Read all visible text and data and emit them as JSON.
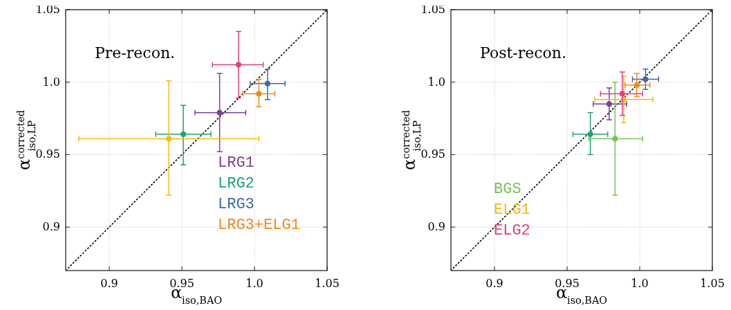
{
  "chart_data": [
    {
      "type": "scatter",
      "xlabel": "α$_{iso,BAO}$",
      "ylabel": "α$^{corrected}$$_{iso,LP}$",
      "annotations": [
        "Pre-recon."
      ],
      "xlim": [
        0.87,
        1.05
      ],
      "ylim": [
        0.87,
        1.05
      ],
      "xticks": [
        0.9,
        0.95,
        {
          "value": 1,
          "label": "1.0"
        },
        1.05
      ],
      "yticks": [
        0.9,
        0.95,
        {
          "value": 1,
          "label": "1.0"
        },
        1.05
      ],
      "grid": true,
      "legend": "bottom right",
      "marker": "circle",
      "series": [
        {
          "type": "line",
          "color": "#000000",
          "line_style": "dotted",
          "marker": "none",
          "x": [
            0.87,
            1.05
          ],
          "values": [
            0.87,
            1.05
          ]
        },
        {
          "name": "LRG1",
          "color": "#7b3f98",
          "x": [
            0.976
          ],
          "values": [
            0.979
          ],
          "xerrors": [
            [
              0.959,
              0.994
            ]
          ],
          "errors": [
            [
              0.952,
              1.006
            ]
          ]
        },
        {
          "name": "LRG2",
          "color": "#1aa37a",
          "x": [
            0.951
          ],
          "values": [
            0.964
          ],
          "xerrors": [
            [
              0.932,
              0.97
            ]
          ],
          "errors": [
            [
              0.943,
              0.984
            ]
          ]
        },
        {
          "name": "LRG3",
          "color": "#3b68b0",
          "x": [
            1.009
          ],
          "values": [
            0.999
          ],
          "xerrors": [
            [
              0.997,
              1.021
            ]
          ],
          "errors": [
            [
              0.988,
              1.009
            ]
          ]
        },
        {
          "name": "LRG3+ELG1",
          "color": "#f0891a",
          "x": [
            1.003
          ],
          "values": [
            0.992
          ],
          "xerrors": [
            [
              0.992,
              1.014
            ]
          ],
          "errors": [
            [
              0.983,
              1.002
            ]
          ]
        },
        {
          "color": "#f5bc0a",
          "x": [
            0.941
          ],
          "values": [
            0.961
          ],
          "xerrors": [
            [
              0.879,
              1.003
            ]
          ],
          "errors": [
            [
              0.922,
              1.001
            ]
          ]
        },
        {
          "color": "#e83e73",
          "x": [
            0.989
          ],
          "values": [
            1.012
          ],
          "xerrors": [
            [
              0.971,
              1.006
            ]
          ],
          "errors": [
            [
              0.989,
              1.035
            ]
          ]
        }
      ]
    },
    {
      "type": "scatter",
      "xlabel": "α$_{iso,BAO}$",
      "ylabel": "α$^{corrected}$$_{iso,LP}$",
      "annotations": [
        "Post-recon."
      ],
      "xlim": [
        0.87,
        1.05
      ],
      "ylim": [
        0.87,
        1.05
      ],
      "xticks": [
        0.9,
        0.95,
        {
          "value": 1,
          "label": "1.0"
        },
        1.05
      ],
      "yticks": [
        0.9,
        0.95,
        {
          "value": 1,
          "label": "1.0"
        },
        1.05
      ],
      "grid": true,
      "legend": "bottom left",
      "marker": "circle",
      "series": [
        {
          "type": "line",
          "color": "#000000",
          "line_style": "dotted",
          "marker": "none",
          "x": [
            0.87,
            1.05
          ],
          "values": [
            0.87,
            1.05
          ]
        },
        {
          "color": "#7b3f98",
          "x": [
            0.979
          ],
          "values": [
            0.985
          ],
          "xerrors": [
            [
              0.968,
              0.991
            ]
          ],
          "errors": [
            [
              0.974,
              0.996
            ]
          ]
        },
        {
          "color": "#1aa37a",
          "x": [
            0.966
          ],
          "values": [
            0.964
          ],
          "xerrors": [
            [
              0.954,
              0.978
            ]
          ],
          "errors": [
            [
              0.95,
              0.979
            ]
          ]
        },
        {
          "color": "#3b68b0",
          "x": [
            1.004
          ],
          "values": [
            1.002
          ],
          "xerrors": [
            [
              0.995,
              1.013
            ]
          ],
          "errors": [
            [
              0.995,
              1.009
            ]
          ]
        },
        {
          "color": "#f0891a",
          "x": [
            0.998
          ],
          "values": [
            0.998
          ],
          "xerrors": [
            [
              0.99,
              1.007
            ]
          ],
          "errors": [
            [
              0.99,
              1.006
            ]
          ]
        },
        {
          "name": "BGS",
          "color": "#7dbf58",
          "x": [
            0.983
          ],
          "values": [
            0.961
          ],
          "xerrors": [
            [
              0.965,
              1.002
            ]
          ],
          "errors": [
            [
              0.922,
              1.0
            ]
          ]
        },
        {
          "name": "ELG1",
          "color": "#f5bc0a",
          "x": [
            0.989
          ],
          "values": [
            0.988
          ],
          "xerrors": [
            [
              0.969,
              1.009
            ]
          ],
          "errors": [
            [
              0.972,
              1.004
            ]
          ]
        },
        {
          "name": "ELG2",
          "color": "#e83e73",
          "x": [
            0.988
          ],
          "values": [
            0.992
          ],
          "xerrors": [
            [
              0.973,
              1.002
            ]
          ],
          "errors": [
            [
              0.977,
              1.007
            ]
          ]
        }
      ]
    }
  ]
}
